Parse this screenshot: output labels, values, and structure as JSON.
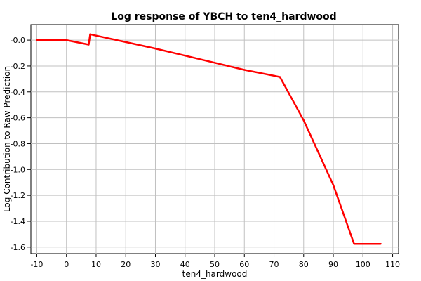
{
  "chart_data": {
    "type": "line",
    "title": "Log response of YBCH to ten4_hardwood",
    "xlabel": "ten4_hardwood",
    "ylabel": "Log Contribution to Raw Prediction",
    "xlim": [
      -12,
      112
    ],
    "ylim": [
      -1.65,
      0.12
    ],
    "xticks": [
      -10,
      0,
      10,
      20,
      30,
      40,
      50,
      60,
      70,
      80,
      90,
      100,
      110
    ],
    "yticks": [
      -0.0,
      -0.2,
      -0.4,
      -0.6,
      -0.8,
      -1.0,
      -1.2,
      -1.4,
      -1.6
    ],
    "ytick_labels": [
      "-0.0",
      "-0.2",
      "-0.4",
      "-0.6",
      "-0.8",
      "-1.0",
      "-1.2",
      "-1.4",
      "-1.6"
    ],
    "grid": true,
    "series": [
      {
        "color": "#ff0000",
        "x": [
          -10,
          0,
          7.5,
          8,
          10,
          20,
          30,
          40,
          50,
          60,
          70,
          72,
          80,
          90,
          97,
          106
        ],
        "y": [
          0.0,
          0.0,
          -0.035,
          0.045,
          0.035,
          -0.015,
          -0.065,
          -0.12,
          -0.175,
          -0.23,
          -0.275,
          -0.285,
          -0.62,
          -1.12,
          -1.575,
          -1.575
        ]
      }
    ]
  }
}
